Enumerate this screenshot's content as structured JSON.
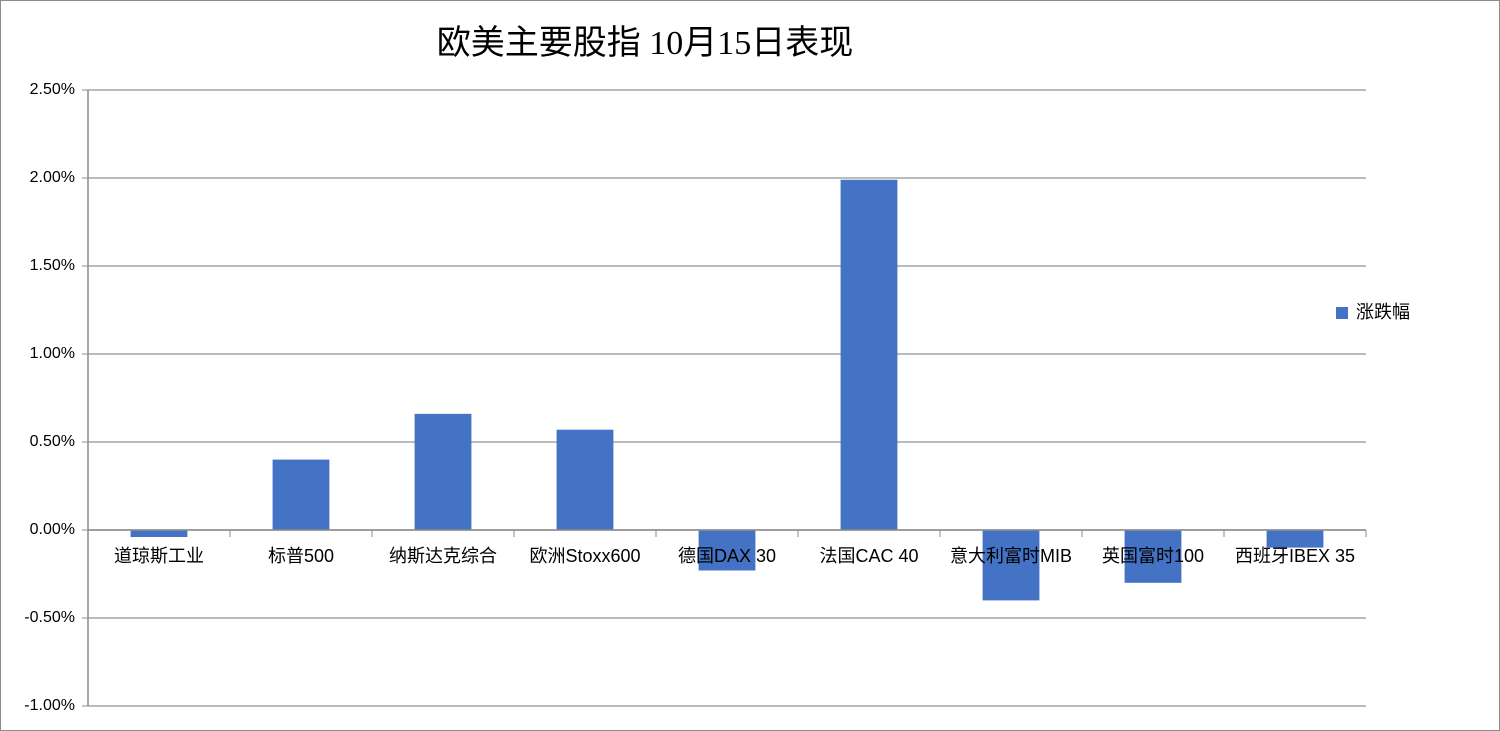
{
  "chart_data": {
    "type": "bar",
    "title": "欧美主要股指    10月15日表现",
    "categories": [
      "道琼斯工业",
      "标普500",
      "纳斯达克综合",
      "欧洲Stoxx600",
      "德国DAX 30",
      "法国CAC 40",
      "意大利富时MIB",
      "英国富时100",
      "西班牙IBEX 35"
    ],
    "series": [
      {
        "name": "涨跌幅",
        "color": "#4472c4",
        "values": [
          -0.04,
          0.4,
          0.66,
          0.57,
          -0.23,
          1.99,
          -0.4,
          -0.3,
          -0.1
        ]
      }
    ],
    "ylim": [
      -1.0,
      2.5
    ],
    "yticks": [
      {
        "value": -1.0,
        "label": "-1.00%"
      },
      {
        "value": -0.5,
        "label": "-0.50%"
      },
      {
        "value": 0,
        "label": "0.00%"
      },
      {
        "value": 0.5,
        "label": "0.50%"
      },
      {
        "value": 1.0,
        "label": "1.00%"
      },
      {
        "value": 1.5,
        "label": "1.50%"
      },
      {
        "value": 2.0,
        "label": "2.00%"
      },
      {
        "value": 2.5,
        "label": "2.50%"
      }
    ],
    "grid": true,
    "legend": "right"
  }
}
